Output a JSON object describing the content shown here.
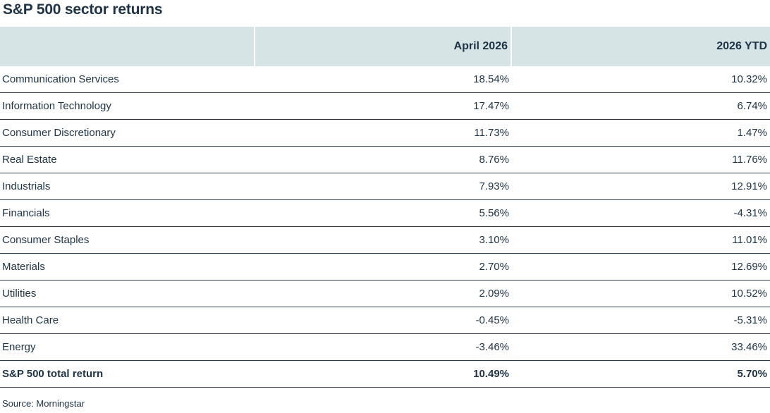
{
  "chart_data": {
    "type": "table",
    "title": "S&P 500 sector returns",
    "columns": [
      "",
      "April 2026",
      "2026 YTD"
    ],
    "rows": [
      {
        "sector": "Communication Services",
        "april_2026": "18.54%",
        "ytd_2026": "10.32%"
      },
      {
        "sector": "Information Technology",
        "april_2026": "17.47%",
        "ytd_2026": "6.74%"
      },
      {
        "sector": "Consumer Discretionary",
        "april_2026": "11.73%",
        "ytd_2026": "1.47%"
      },
      {
        "sector": "Real Estate",
        "april_2026": "8.76%",
        "ytd_2026": "11.76%"
      },
      {
        "sector": "Industrials",
        "april_2026": "7.93%",
        "ytd_2026": "12.91%"
      },
      {
        "sector": "Financials",
        "april_2026": "5.56%",
        "ytd_2026": "-4.31%"
      },
      {
        "sector": "Consumer Staples",
        "april_2026": "3.10%",
        "ytd_2026": "11.01%"
      },
      {
        "sector": "Materials",
        "april_2026": "2.70%",
        "ytd_2026": "12.69%"
      },
      {
        "sector": "Utilities",
        "april_2026": "2.09%",
        "ytd_2026": "10.52%"
      },
      {
        "sector": "Health Care",
        "april_2026": "-0.45%",
        "ytd_2026": "-5.31%"
      },
      {
        "sector": "Energy",
        "april_2026": "-3.46%",
        "ytd_2026": "33.46%"
      }
    ],
    "total": {
      "sector": "S&P 500 total return",
      "april_2026": "10.49%",
      "ytd_2026": "5.70%"
    },
    "source": "Source: Morningstar",
    "colors": {
      "header_bg": "#d6e4e6",
      "text": "#1f3346",
      "rule": "#2c3e50"
    }
  }
}
